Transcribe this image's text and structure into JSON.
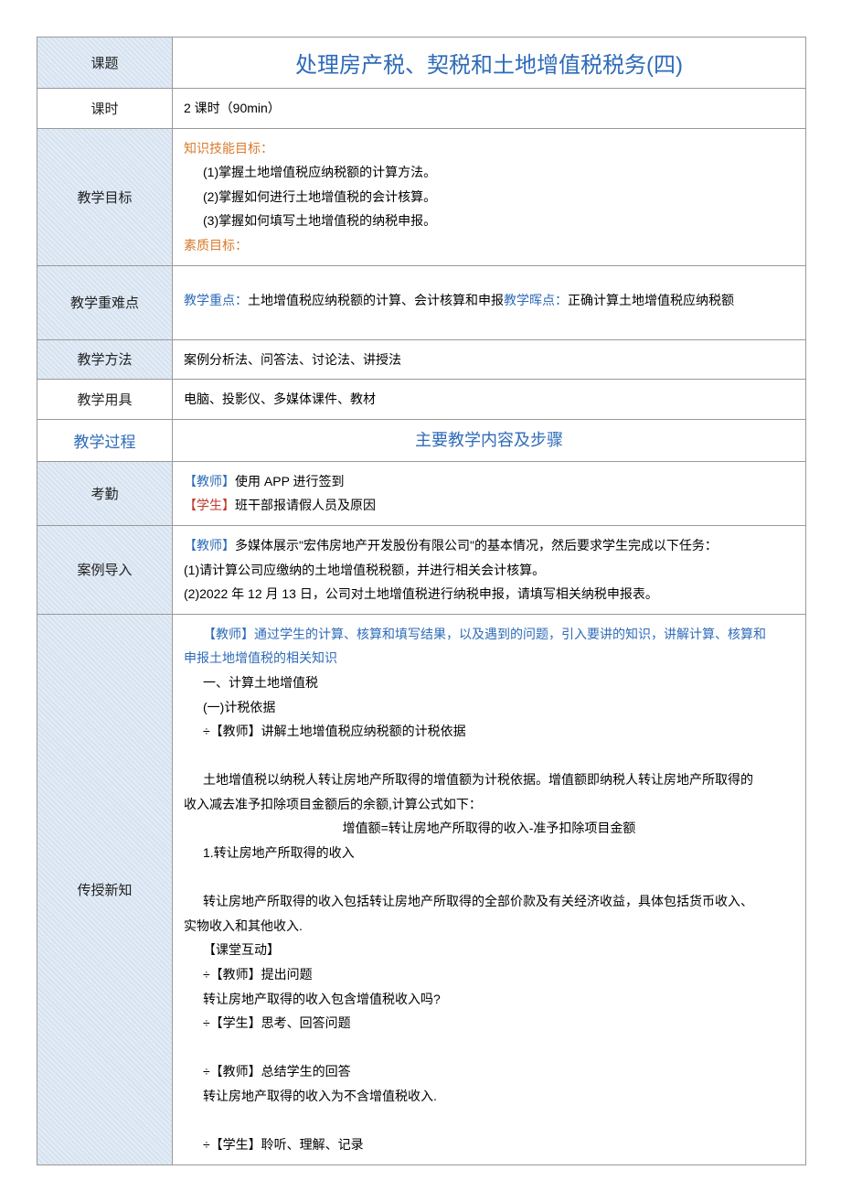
{
  "header": {
    "topic_label": "课题",
    "title": "处理房产税、契税和土地增值税税务(四)",
    "period_label": "课时",
    "period_value": "2 课时（90min）"
  },
  "objectives": {
    "label": "教学目标",
    "knowledge_heading": "知识技能目标：",
    "items": [
      "(1)掌握土地增值税应纳税额的计算方法。",
      "(2)掌握如何进行土地增值税的会计核算。",
      "(3)掌握如何填写土地增值税的纳税申报。"
    ],
    "quality_heading": "素质目标："
  },
  "keypoints": {
    "label": "教学重难点",
    "prefix1": "教学重点：",
    "text1": "土地增值税应纳税额的计算、会计核算和申报",
    "prefix2": "教学晖点：",
    "text2": "正确计算土地增值税应纳税额"
  },
  "methods": {
    "label": "教学方法",
    "value": "案例分析法、问答法、讨论法、讲授法"
  },
  "tools": {
    "label": "教学用具",
    "value": "电脑、投影仪、多媒体课件、教材"
  },
  "process_header": {
    "left": "教学过程",
    "right": "主要教学内容及步骤"
  },
  "attendance": {
    "label": "考勤",
    "line1_prefix": "【教师】",
    "line1_text": "使用 APP 进行签到",
    "line2_prefix": "【学生】",
    "line2_text": "班干部报请假人员及原因"
  },
  "case_intro": {
    "label": "案例导入",
    "teacher_prefix": "【教师】",
    "teacher_text": "多媒体展示\"宏伟房地产开发股份有限公司\"的基本情况，然后要求学生完成以下任务：",
    "tasks": [
      "(1)请计算公司应缴纳的土地增值税税额，并进行相关会计核算。",
      "(2)2022 年 12 月 13 日，公司对土地增值税进行纳税申报，请填写相关纳税申报表。"
    ]
  },
  "teach": {
    "label": "传授新知",
    "intro_prefix": "【教师】",
    "intro_text1": "通过学生的计算、核算和填写结果，以及遇到的问题，引入要讲的知识，讲解计算、核算和",
    "intro_text2": "申报土地增值税的相关知识",
    "h1": "一、计算土地增值税",
    "h2": "(一)计税依据",
    "t1": "÷【教师】讲解土地增值税应纳税额的计税依据",
    "p1a": "土地增值税以纳税人转让房地产所取得的增值额为计税依据。增值额即纳税人转让房地产所取得的",
    "p1b": "收入减去准予扣除项目金额后的余额,计算公式如下：",
    "formula": "增值额=转让房地产所取得的收入-准予扣除项目金额",
    "s1": "1.转让房地产所取得的收入",
    "p2a": "转让房地产所取得的收入包括转让房地产所取得的全部价款及有关经济收益，具体包括货币收入、",
    "p2b": "实物收入和其他收入.",
    "inter_label": "【课堂互动】",
    "q_teacher": "÷【教师】提出问题",
    "q_text": "转让房地产取得的收入包含增值税收入吗?",
    "a_student": "÷【学生】思考、回答问题",
    "sum_teacher": "÷【教师】总结学生的回答",
    "sum_text": "转让房地产取得的收入为不含增值税收入.",
    "listen": "÷【学生】聆听、理解、记录"
  }
}
